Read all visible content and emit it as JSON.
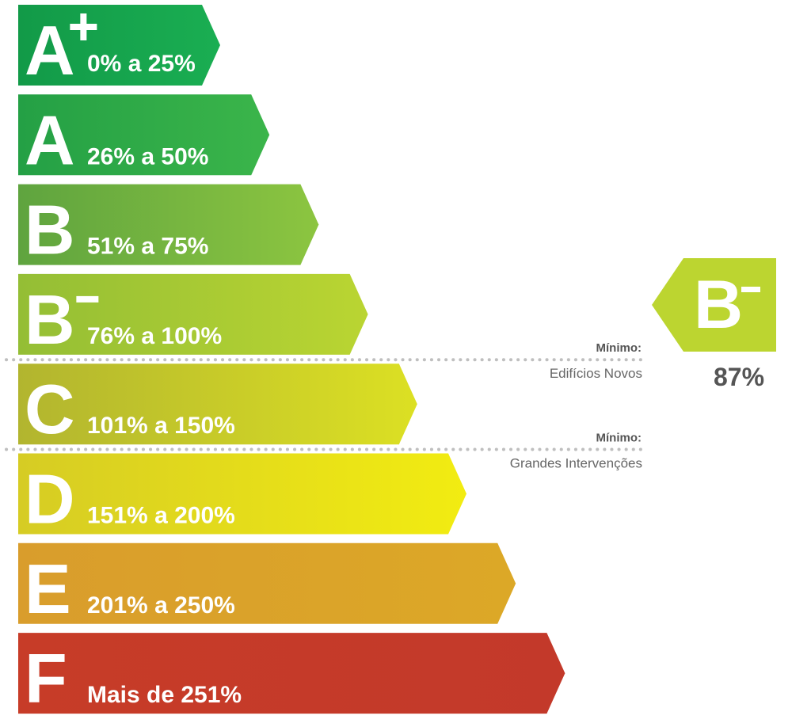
{
  "chart_data": {
    "type": "energy-rating-scale",
    "classes": [
      {
        "letter": "A",
        "suffix": "+",
        "range": "0% a 25%",
        "color_start": "#129a48",
        "color_end": "#1aae52"
      },
      {
        "letter": "A",
        "suffix": "",
        "range": "26% a 50%",
        "color_start": "#24a045",
        "color_end": "#3bb54a"
      },
      {
        "letter": "B",
        "suffix": "",
        "range": "51% a 75%",
        "color_start": "#5fa43f",
        "color_end": "#8cc540"
      },
      {
        "letter": "B",
        "suffix": "-",
        "range": "76% a 100%",
        "color_start": "#94be35",
        "color_end": "#bad532"
      },
      {
        "letter": "C",
        "suffix": "",
        "range": "101% a 150%",
        "color_start": "#b2b52f",
        "color_end": "#dce023"
      },
      {
        "letter": "D",
        "suffix": "",
        "range": "151% a 200%",
        "color_start": "#d6cc24",
        "color_end": "#f2ec11"
      },
      {
        "letter": "E",
        "suffix": "",
        "range": "201% a 250%",
        "color_start": "#d99d2c",
        "color_end": "#dca827"
      },
      {
        "letter": "F",
        "suffix": "",
        "range": "Mais de 251%",
        "color_start": "#c73c28",
        "color_end": "#c3392a"
      }
    ],
    "minimum_lines": [
      {
        "after_class_index": 3,
        "title": "Mínimo:",
        "subtitle": "Edifícios Novos"
      },
      {
        "after_class_index": 4,
        "title": "Mínimo:",
        "subtitle": "Grandes Intervenções"
      }
    ],
    "rating": {
      "letter": "B",
      "suffix": "-",
      "value": 87,
      "value_label": "87%",
      "color": "#bcd530"
    }
  }
}
